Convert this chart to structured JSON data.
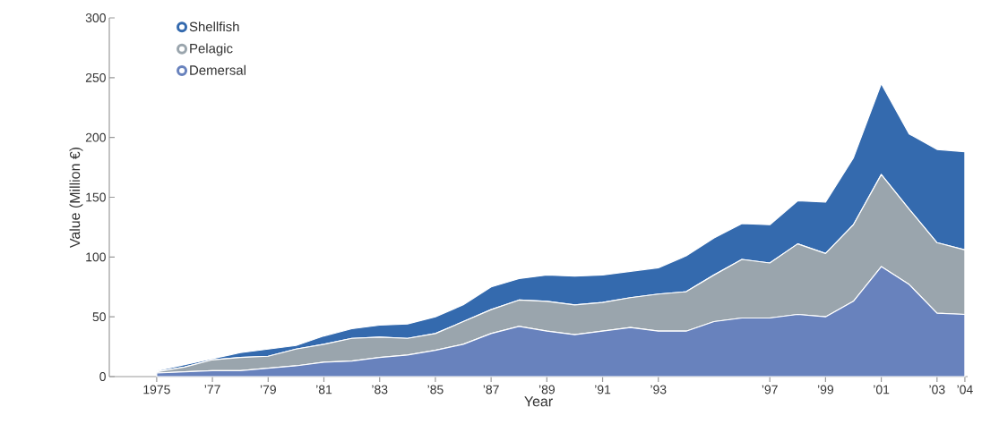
{
  "chart_data": {
    "type": "area",
    "stacked": true,
    "xlabel": "Year",
    "ylabel": "Value (Million €)",
    "x": [
      1975,
      1976,
      1977,
      1978,
      1979,
      1980,
      1981,
      1982,
      1983,
      1984,
      1985,
      1986,
      1987,
      1988,
      1989,
      1990,
      1991,
      1992,
      1993,
      1994,
      1995,
      1996,
      1997,
      1998,
      1999,
      2000,
      2001,
      2002,
      2003,
      2004
    ],
    "series": [
      {
        "name": "Demersal",
        "color": "#6882bd",
        "values": [
          3,
          4,
          5,
          5,
          7,
          9,
          12,
          13,
          16,
          18,
          22,
          27,
          36,
          42,
          38,
          35,
          38,
          41,
          38,
          38,
          46,
          49,
          49,
          52,
          50,
          63,
          92,
          77,
          53,
          52
        ]
      },
      {
        "name": "Pelagic",
        "color": "#9aa5ad",
        "values": [
          1,
          4,
          9,
          11,
          10,
          14,
          15,
          19,
          17,
          14,
          14,
          19,
          20,
          22,
          25,
          25,
          24,
          25,
          31,
          33,
          39,
          49,
          46,
          59,
          53,
          64,
          77,
          63,
          59,
          54
        ]
      },
      {
        "name": "Shellfish",
        "color": "#346aae",
        "values": [
          1,
          2,
          1,
          4,
          6,
          3,
          7,
          8,
          10,
          12,
          14,
          14,
          19,
          18,
          22,
          24,
          23,
          22,
          22,
          30,
          31,
          30,
          32,
          36,
          43,
          56,
          76,
          63,
          78,
          82
        ]
      }
    ],
    "xlim": [
      1973.3,
      2004.1
    ],
    "xticks": [
      1975,
      {
        "value": 1977,
        "label": "’77"
      },
      {
        "value": 1979,
        "label": "’79"
      },
      {
        "value": 1981,
        "label": "’81"
      },
      {
        "value": 1983,
        "label": "’83"
      },
      {
        "value": 1985,
        "label": "’85"
      },
      {
        "value": 1987,
        "label": "’87"
      },
      {
        "value": 1989,
        "label": "’89"
      },
      {
        "value": 1991,
        "label": "’91"
      },
      {
        "value": 1993,
        "label": "’93"
      },
      {
        "value": 1997,
        "label": "’97"
      },
      {
        "value": 1999,
        "label": "’99"
      },
      {
        "value": 2001,
        "label": "’01"
      },
      {
        "value": 2003,
        "label": "’03"
      },
      {
        "value": 2004,
        "label": "’04"
      }
    ],
    "ylim": [
      0,
      300
    ],
    "yticks": [
      0,
      50,
      100,
      150,
      200,
      250,
      300
    ],
    "legend": "top left"
  }
}
